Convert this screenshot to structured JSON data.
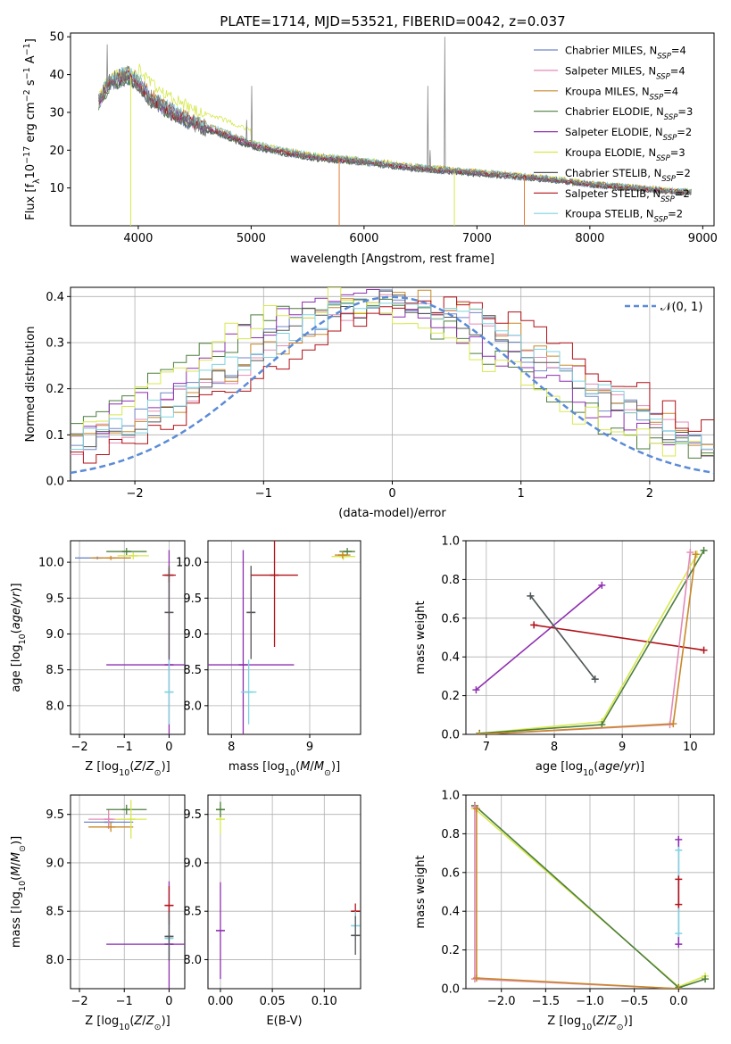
{
  "title": "PLATE=1714, MJD=53521, FIBERID=0042, z=0.037",
  "colors": {
    "Chabrier MILES": "#6f87c8",
    "Salpeter MILES": "#e38bb6",
    "Kroupa MILES": "#c8882a",
    "Chabrier ELODIE": "#4d7f3e",
    "Salpeter ELODIE": "#8e2fb0",
    "Kroupa ELODIE": "#d7e84e",
    "Chabrier STELIB": "#555555",
    "Salpeter STELIB": "#b01218",
    "Kroupa STELIB": "#7fd3e0",
    "normal": "#5b8bd6",
    "orange": "#e07b32",
    "green_line": "#aee04a"
  },
  "legend1": [
    {
      "name": "Chabrier MILES",
      "lab": "Chabrier MILES, N",
      "sub": "SSP",
      "eq": "=4"
    },
    {
      "name": "Salpeter MILES",
      "lab": "Salpeter MILES, N",
      "sub": "SSP",
      "eq": "=4"
    },
    {
      "name": "Kroupa MILES",
      "lab": "Kroupa MILES, N",
      "sub": "SSP",
      "eq": "=4"
    },
    {
      "name": "Chabrier ELODIE",
      "lab": "Chabrier ELODIE, N",
      "sub": "SSP",
      "eq": "=3"
    },
    {
      "name": "Salpeter ELODIE",
      "lab": "Salpeter ELODIE, N",
      "sub": "SSP",
      "eq": "=2"
    },
    {
      "name": "Kroupa ELODIE",
      "lab": "Kroupa ELODIE, N",
      "sub": "SSP",
      "eq": "=3"
    },
    {
      "name": "Chabrier STELIB",
      "lab": "Chabrier STELIB, N",
      "sub": "SSP",
      "eq": "=2"
    },
    {
      "name": "Salpeter STELIB",
      "lab": "Salpeter STELIB, N",
      "sub": "SSP",
      "eq": "=2"
    },
    {
      "name": "Kroupa STELIB",
      "lab": "Kroupa STELIB, N",
      "sub": "SSP",
      "eq": "=2"
    }
  ],
  "legend2": "𝒩(0, 1)",
  "chart_data": [
    {
      "type": "line",
      "id": "spectrum",
      "xlabel": "wavelength [Angstrom, rest frame]",
      "ylabel": "Flux [f_λ10^-17 erg cm^-2 s^-1 A^-1]",
      "xlim": [
        3400,
        9100
      ],
      "ylim": [
        0,
        51
      ],
      "xticks": [
        4000,
        5000,
        6000,
        7000,
        8000,
        9000
      ],
      "yticks": [
        10,
        20,
        30,
        40,
        50
      ],
      "data_continuum": {
        "x": [
          3650,
          3750,
          3900,
          4000,
          4100,
          4300,
          4500,
          4700,
          5000,
          5300,
          5600,
          6000,
          6400,
          6800,
          7200,
          7600,
          8000,
          8400,
          8800
        ],
        "y": [
          33,
          38,
          40,
          38,
          34,
          30,
          27,
          25,
          21.5,
          19.5,
          18,
          17,
          15.5,
          14.5,
          13.5,
          12.5,
          11,
          10,
          9
        ]
      },
      "emission_lines": [
        {
          "x": 6563,
          "peak": 37
        },
        {
          "x": 6583,
          "peak": 20
        },
        {
          "x": 6716,
          "peak": 50
        },
        {
          "x": 5007,
          "peak": 37
        },
        {
          "x": 4959,
          "peak": 28
        },
        {
          "x": 3727,
          "peak": 48
        }
      ]
    },
    {
      "type": "area",
      "id": "residuals",
      "xlabel": "(data-model)/error",
      "ylabel": "Normed distribution",
      "xlim": [
        -2.5,
        2.5
      ],
      "ylim": [
        0,
        0.42
      ],
      "xticks": [
        -2,
        -1,
        0,
        1,
        2
      ],
      "yticks": [
        0.0,
        0.1,
        0.2,
        0.3,
        0.4
      ],
      "gauss": {
        "mu": 0,
        "sigma": 1,
        "peak": 0.399
      }
    },
    {
      "type": "scatter",
      "id": "age_vs_Z",
      "xlabel": "Z [log10(Z/Z⊙)]",
      "ylabel": "age [log10(age/yr)]",
      "xlim": [
        -2.2,
        0.35
      ],
      "ylim": [
        7.6,
        10.3
      ],
      "xticks": [
        -2,
        -1,
        0
      ],
      "yticks": [
        8.0,
        8.5,
        9.0,
        9.5,
        10.0
      ],
      "points": [
        {
          "s": "Chabrier MILES",
          "x": -1.6,
          "y": 10.06,
          "xerr": 0.5,
          "yerr": 0.02
        },
        {
          "s": "Kroupa MILES",
          "x": -1.3,
          "y": 10.06,
          "xerr": 0.45,
          "yerr": 0.03
        },
        {
          "s": "Chabrier ELODIE",
          "x": -0.95,
          "y": 10.15,
          "xerr": 0.45,
          "yerr": 0.05
        },
        {
          "s": "Kroupa ELODIE",
          "x": -0.8,
          "y": 10.09,
          "xerr": 0.35,
          "yerr": 0.05
        },
        {
          "s": "Salpeter ELODIE",
          "x": 0.0,
          "y": 8.57,
          "xerr": 1.4,
          "yerr": 1.6
        },
        {
          "s": "Salpeter STELIB",
          "x": 0.0,
          "y": 9.82,
          "xerr": 0.15,
          "yerr": 0.1
        },
        {
          "s": "Kroupa STELIB",
          "x": 0.0,
          "y": 8.19,
          "xerr": 0.1,
          "yerr": 0.45
        },
        {
          "s": "Chabrier STELIB",
          "x": 0.0,
          "y": 9.3,
          "xerr": 0.05,
          "yerr": 0.65
        }
      ]
    },
    {
      "type": "scatter",
      "id": "age_vs_mass",
      "xlabel": "mass [log10(M/M⊙)]",
      "ylabel": "",
      "xlim": [
        7.7,
        9.65
      ],
      "ylim": [
        7.6,
        10.3
      ],
      "xticks": [
        8,
        9
      ],
      "yticks": [
        8.0,
        8.5,
        9.0,
        9.5,
        10.0
      ],
      "points": [
        {
          "s": "Salpeter ELODIE",
          "x": 8.15,
          "y": 8.57,
          "xerr": 0.65,
          "yerr": 1.6
        },
        {
          "s": "Kroupa STELIB",
          "x": 8.22,
          "y": 8.19,
          "xerr": 0.1,
          "yerr": 0.45
        },
        {
          "s": "Chabrier STELIB",
          "x": 8.25,
          "y": 9.3,
          "xerr": 0.05,
          "yerr": 0.65
        },
        {
          "s": "Salpeter STELIB",
          "x": 8.55,
          "y": 9.82,
          "xerr": 0.3,
          "yerr": 1.0
        },
        {
          "s": "Kroupa ELODIE",
          "x": 9.43,
          "y": 10.08,
          "xerr": 0.15,
          "yerr": 0.05
        },
        {
          "s": "Chabrier ELODIE",
          "x": 9.48,
          "y": 10.15,
          "xerr": 0.1,
          "yerr": 0.05
        },
        {
          "s": "Kroupa MILES",
          "x": 9.42,
          "y": 10.1,
          "xerr": 0.1,
          "yerr": 0.05
        }
      ]
    },
    {
      "type": "line",
      "id": "weight_vs_age",
      "xlabel": "age [log10(age/yr)]",
      "ylabel": "mass weight",
      "xlim": [
        6.7,
        10.35
      ],
      "ylim": [
        0,
        1
      ],
      "xticks": [
        7,
        8,
        9,
        10
      ],
      "yticks": [
        0.0,
        0.2,
        0.4,
        0.6,
        0.8,
        1.0
      ],
      "series": [
        {
          "s": "Salpeter ELODIE",
          "x": [
            6.85,
            8.7
          ],
          "y": [
            0.23,
            0.77
          ]
        },
        {
          "s": "Kroupa STELIB",
          "x": [
            7.65,
            8.6
          ],
          "y": [
            0.715,
            0.285
          ]
        },
        {
          "s": "Salpeter STELIB",
          "x": [
            7.7,
            10.2
          ],
          "y": [
            0.565,
            0.435
          ]
        },
        {
          "s": "Chabrier STELIB",
          "x": [
            7.65,
            8.6
          ],
          "y": [
            0.715,
            0.285
          ]
        },
        {
          "s": "Kroupa ELODIE",
          "x": [
            6.9,
            8.7,
            10.1
          ],
          "y": [
            0.005,
            0.065,
            0.93
          ]
        },
        {
          "s": "Chabrier ELODIE",
          "x": [
            6.9,
            8.7,
            10.2
          ],
          "y": [
            0.005,
            0.05,
            0.95
          ]
        },
        {
          "s": "Salpeter MILES",
          "x": [
            6.9,
            9.7,
            10.0
          ],
          "y": [
            0.0,
            0.05,
            0.94
          ]
        },
        {
          "s": "Kroupa MILES",
          "x": [
            6.9,
            9.75,
            10.08
          ],
          "y": [
            0.0,
            0.055,
            0.93
          ]
        }
      ]
    },
    {
      "type": "scatter",
      "id": "mass_vs_Z",
      "xlabel": "Z [log10(Z/Z⊙)]",
      "ylabel": "mass [log10(M/M⊙)]",
      "xlim": [
        -2.2,
        0.35
      ],
      "ylim": [
        7.7,
        9.7
      ],
      "xticks": [
        -2,
        -1,
        0
      ],
      "yticks": [
        8.0,
        8.5,
        9.0,
        9.5
      ],
      "points": [
        {
          "s": "Chabrier MILES",
          "x": -1.35,
          "y": 9.42,
          "xerr": 0.55,
          "yerr": 0.05
        },
        {
          "s": "Salpeter MILES",
          "x": -1.35,
          "y": 9.45,
          "xerr": 0.45,
          "yerr": 0.1
        },
        {
          "s": "Kroupa MILES",
          "x": -1.3,
          "y": 9.37,
          "xerr": 0.5,
          "yerr": 0.05
        },
        {
          "s": "Chabrier ELODIE",
          "x": -0.95,
          "y": 9.55,
          "xerr": 0.45,
          "yerr": 0.05
        },
        {
          "s": "Kroupa ELODIE",
          "x": -0.85,
          "y": 9.45,
          "xerr": 0.35,
          "yerr": 0.2
        },
        {
          "s": "Salpeter ELODIE",
          "x": 0.0,
          "y": 8.16,
          "xerr": 1.4,
          "yerr": 0.65
        },
        {
          "s": "Salpeter STELIB",
          "x": 0.0,
          "y": 8.56,
          "xerr": 0.1,
          "yerr": 0.2
        },
        {
          "s": "Kroupa STELIB",
          "x": 0.0,
          "y": 8.22,
          "xerr": 0.08,
          "yerr": 0.2
        },
        {
          "s": "Chabrier STELIB",
          "x": 0.0,
          "y": 8.24,
          "xerr": 0.05,
          "yerr": 0.25
        }
      ]
    },
    {
      "type": "scatter",
      "id": "mass_vs_ebv",
      "xlabel": "E(B-V)",
      "ylabel": "",
      "xlim": [
        -0.012,
        0.135
      ],
      "ylim": [
        7.7,
        9.7
      ],
      "xticks": [
        0.0,
        0.05,
        0.1
      ],
      "yticks": [
        8.0,
        8.5,
        9.0,
        9.5
      ],
      "points": [
        {
          "s": "Kroupa ELODIE",
          "x": 0.0,
          "y": 9.45,
          "xerr": 0.0,
          "yerr": 0.15
        },
        {
          "s": "Chabrier ELODIE",
          "x": 0.0,
          "y": 9.55,
          "xerr": 0.0,
          "yerr": 0.08
        },
        {
          "s": "Salpeter ELODIE",
          "x": 0.0,
          "y": 8.3,
          "xerr": 0.0,
          "yerr": 0.5
        },
        {
          "s": "Salpeter STELIB",
          "x": 0.13,
          "y": 8.5,
          "xerr": 0.0,
          "yerr": 0.08
        },
        {
          "s": "Kroupa STELIB",
          "x": 0.13,
          "y": 8.35,
          "xerr": 0.0,
          "yerr": 0.15
        },
        {
          "s": "Chabrier STELIB",
          "x": 0.13,
          "y": 8.25,
          "xerr": 0.0,
          "yerr": 0.2
        }
      ]
    },
    {
      "type": "line",
      "id": "weight_vs_Z",
      "xlabel": "Z [log10(Z/Z⊙)]",
      "ylabel": "mass weight",
      "xlim": [
        -2.4,
        0.4
      ],
      "ylim": [
        0,
        1
      ],
      "xticks": [
        -2.0,
        -1.5,
        -1.0,
        -0.5,
        0.0
      ],
      "yticks": [
        0.0,
        0.2,
        0.4,
        0.6,
        0.8,
        1.0
      ],
      "series": [
        {
          "s": "Kroupa ELODIE",
          "x": [
            -2.3,
            0.0,
            0.3
          ],
          "y": [
            0.93,
            0.01,
            0.065
          ]
        },
        {
          "s": "Chabrier ELODIE",
          "x": [
            -2.3,
            0.0,
            0.3
          ],
          "y": [
            0.945,
            0.005,
            0.05
          ]
        },
        {
          "s": "Salpeter MILES",
          "x": [
            -2.3,
            -2.3,
            0.0
          ],
          "y": [
            0.94,
            0.05,
            0.0
          ]
        },
        {
          "s": "Kroupa MILES",
          "x": [
            -2.28,
            -2.28,
            0.0
          ],
          "y": [
            0.93,
            0.055,
            0.0
          ]
        },
        {
          "s": "Salpeter ELODIE",
          "x": [
            0.0,
            0.0
          ],
          "y": [
            0.23,
            0.77
          ]
        },
        {
          "s": "Kroupa STELIB",
          "x": [
            0.0,
            0.0
          ],
          "y": [
            0.285,
            0.715
          ]
        },
        {
          "s": "Salpeter STELIB",
          "x": [
            0.0,
            0.0
          ],
          "y": [
            0.435,
            0.565
          ]
        }
      ]
    }
  ]
}
